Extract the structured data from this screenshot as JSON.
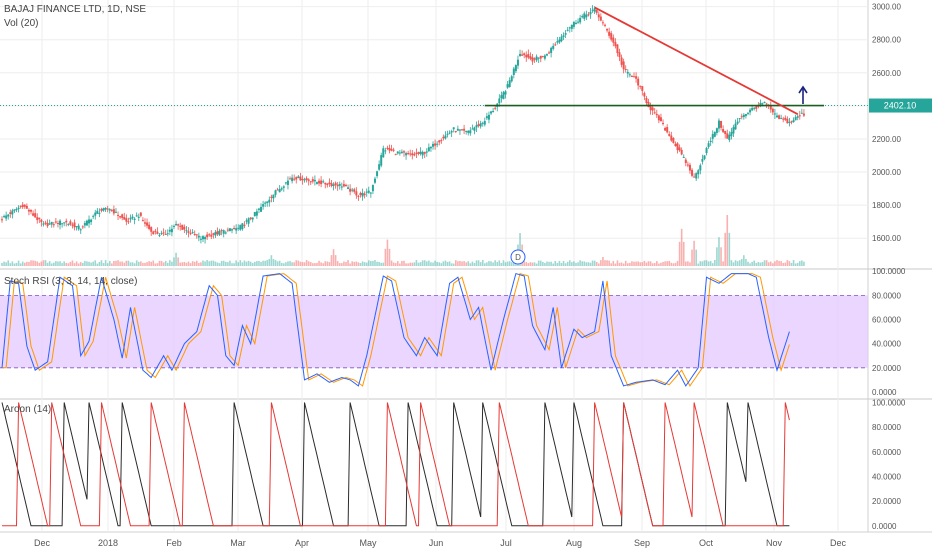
{
  "header": {
    "symbol": "BAJAJ FINANCE LTD, 1D, NSE",
    "vol_label": "Vol (20)"
  },
  "colors": {
    "up": "#26a69a",
    "down": "#ef5350",
    "trendline": "#e53935",
    "support": "#1b5e20",
    "arrow": "#1a237e",
    "stoch_k": "#2962ff",
    "stoch_d": "#ff9800",
    "stoch_band": "#e1c4ff",
    "aroon_up": "#2b2b2b",
    "aroon_down": "#e53935",
    "price_line": "#26a69a",
    "grid": "#eeeeee"
  },
  "price_badge": "2402.10",
  "event_marker": "D",
  "stoch": {
    "title": "Stoch RSI (3, 3, 14, 14, close)",
    "upper": 80,
    "lower": 20
  },
  "aroon": {
    "title": "Aroon (14)"
  },
  "chart_data": [
    {
      "type": "candlestick",
      "title": "BAJAJ FINANCE LTD, 1D, NSE",
      "x_ticks": [
        "Dec",
        "2018",
        "Feb",
        "Mar",
        "Apr",
        "May",
        "Jun",
        "Jul",
        "Aug",
        "Sep",
        "Oct",
        "Nov",
        "Dec"
      ],
      "y_ticks": [
        "3000.00",
        "2800.00",
        "2600.00",
        "2400.00",
        "2200.00",
        "2000.00",
        "1800.00",
        "1600.00"
      ],
      "ylim": [
        1420,
        3040
      ],
      "last_price": 2402.1,
      "close_path": [
        [
          0,
          1720
        ],
        [
          10,
          1800
        ],
        [
          20,
          1680
        ],
        [
          30,
          1700
        ],
        [
          38,
          1660
        ],
        [
          46,
          1760
        ],
        [
          52,
          1780
        ],
        [
          60,
          1700
        ],
        [
          66,
          1740
        ],
        [
          72,
          1640
        ],
        [
          78,
          1620
        ],
        [
          84,
          1680
        ],
        [
          90,
          1640
        ],
        [
          96,
          1600
        ],
        [
          106,
          1640
        ],
        [
          114,
          1660
        ],
        [
          120,
          1720
        ],
        [
          126,
          1800
        ],
        [
          132,
          1880
        ],
        [
          140,
          1970
        ],
        [
          148,
          1950
        ],
        [
          156,
          1930
        ],
        [
          164,
          1920
        ],
        [
          172,
          1860
        ],
        [
          178,
          1880
        ],
        [
          184,
          2140
        ],
        [
          190,
          2120
        ],
        [
          198,
          2100
        ],
        [
          204,
          2120
        ],
        [
          212,
          2200
        ],
        [
          218,
          2260
        ],
        [
          224,
          2240
        ],
        [
          232,
          2300
        ],
        [
          238,
          2390
        ],
        [
          244,
          2520
        ],
        [
          250,
          2720
        ],
        [
          256,
          2680
        ],
        [
          262,
          2700
        ],
        [
          268,
          2790
        ],
        [
          274,
          2880
        ],
        [
          280,
          2940
        ],
        [
          286,
          2980
        ],
        [
          290,
          2900
        ],
        [
          296,
          2760
        ],
        [
          300,
          2620
        ],
        [
          306,
          2560
        ],
        [
          312,
          2400
        ],
        [
          318,
          2300
        ],
        [
          324,
          2180
        ],
        [
          330,
          2060
        ],
        [
          334,
          1960
        ],
        [
          340,
          2140
        ],
        [
          346,
          2300
        ],
        [
          350,
          2200
        ],
        [
          356,
          2330
        ],
        [
          362,
          2380
        ],
        [
          368,
          2420
        ],
        [
          374,
          2330
        ],
        [
          380,
          2300
        ],
        [
          386,
          2350
        ]
      ],
      "volume": {
        "label": "Vol (20)",
        "spikes": [
          [
            84,
            0.22
          ],
          [
            130,
            0.18
          ],
          [
            160,
            0.28
          ],
          [
            186,
            0.44
          ],
          [
            250,
            0.55
          ],
          [
            290,
            0.15
          ],
          [
            328,
            0.62
          ],
          [
            334,
            0.42
          ],
          [
            346,
            0.48
          ],
          [
            350,
            0.85
          ],
          [
            358,
            0.18
          ]
        ]
      },
      "trendline": {
        "from": [
          286,
          2995
        ],
        "to": [
          384,
          2350
        ]
      },
      "support_level": 2402,
      "annotations": [
        "up-arrow",
        "price-line"
      ]
    },
    {
      "type": "line",
      "title": "Stoch RSI (3, 3, 14, 14, close)",
      "y_ticks": [
        "100.0000",
        "80.0000",
        "60.0000",
        "40.0000",
        "20.0000",
        "0.0000"
      ],
      "ylim": [
        -5,
        101
      ],
      "band": [
        20,
        80
      ],
      "series": [
        {
          "values_path": [
            [
              0,
              20
            ],
            [
              4,
              92
            ],
            [
              8,
              90
            ],
            [
              12,
              38
            ],
            [
              16,
              18
            ],
            [
              22,
              25
            ],
            [
              28,
              95
            ],
            [
              34,
              88
            ],
            [
              38,
              30
            ],
            [
              42,
              42
            ],
            [
              48,
              95
            ],
            [
              54,
              60
            ],
            [
              58,
              28
            ],
            [
              62,
              70
            ],
            [
              68,
              18
            ],
            [
              72,
              12
            ],
            [
              78,
              30
            ],
            [
              82,
              18
            ],
            [
              88,
              40
            ],
            [
              94,
              50
            ],
            [
              100,
              88
            ],
            [
              104,
              80
            ],
            [
              108,
              30
            ],
            [
              112,
              22
            ],
            [
              116,
              55
            ],
            [
              120,
              40
            ],
            [
              126,
              96
            ],
            [
              134,
              98
            ],
            [
              140,
              90
            ],
            [
              146,
              10
            ],
            [
              152,
              15
            ],
            [
              158,
              8
            ],
            [
              164,
              12
            ],
            [
              168,
              10
            ],
            [
              172,
              5
            ],
            [
              176,
              30
            ],
            [
              184,
              96
            ],
            [
              188,
              92
            ],
            [
              194,
              45
            ],
            [
              200,
              30
            ],
            [
              204,
              45
            ],
            [
              210,
              30
            ],
            [
              216,
              90
            ],
            [
              220,
              95
            ],
            [
              226,
              60
            ],
            [
              230,
              70
            ],
            [
              236,
              18
            ],
            [
              242,
              60
            ],
            [
              248,
              98
            ],
            [
              252,
              96
            ],
            [
              256,
              55
            ],
            [
              262,
              35
            ],
            [
              266,
              70
            ],
            [
              270,
              20
            ],
            [
              276,
              52
            ],
            [
              280,
              45
            ],
            [
              286,
              50
            ],
            [
              290,
              92
            ],
            [
              294,
              30
            ],
            [
              300,
              5
            ],
            [
              306,
              8
            ],
            [
              314,
              10
            ],
            [
              320,
              6
            ],
            [
              326,
              18
            ],
            [
              330,
              5
            ],
            [
              336,
              20
            ],
            [
              340,
              95
            ],
            [
              346,
              90
            ],
            [
              352,
              98
            ],
            [
              360,
              98
            ],
            [
              364,
              95
            ],
            [
              370,
              45
            ],
            [
              374,
              18
            ],
            [
              380,
              50
            ]
          ]
        },
        {
          "lagged": true
        }
      ]
    },
    {
      "type": "line",
      "title": "Aroon (14)",
      "y_ticks": [
        "100.0000",
        "80.0000",
        "60.0000",
        "40.0000",
        "20.0000",
        "0.0000"
      ],
      "ylim": [
        -5,
        102
      ],
      "series": [
        {
          "resets_up": [
            0,
            30,
            42,
            58,
            112,
            146,
            168,
            196,
            218,
            232,
            262,
            276,
            300,
            350,
            360
          ]
        },
        {
          "resets_up": [
            8,
            24,
            48,
            72,
            88,
            130,
            186,
            202,
            240,
            286,
            300,
            320,
            334,
            378
          ]
        }
      ]
    }
  ]
}
